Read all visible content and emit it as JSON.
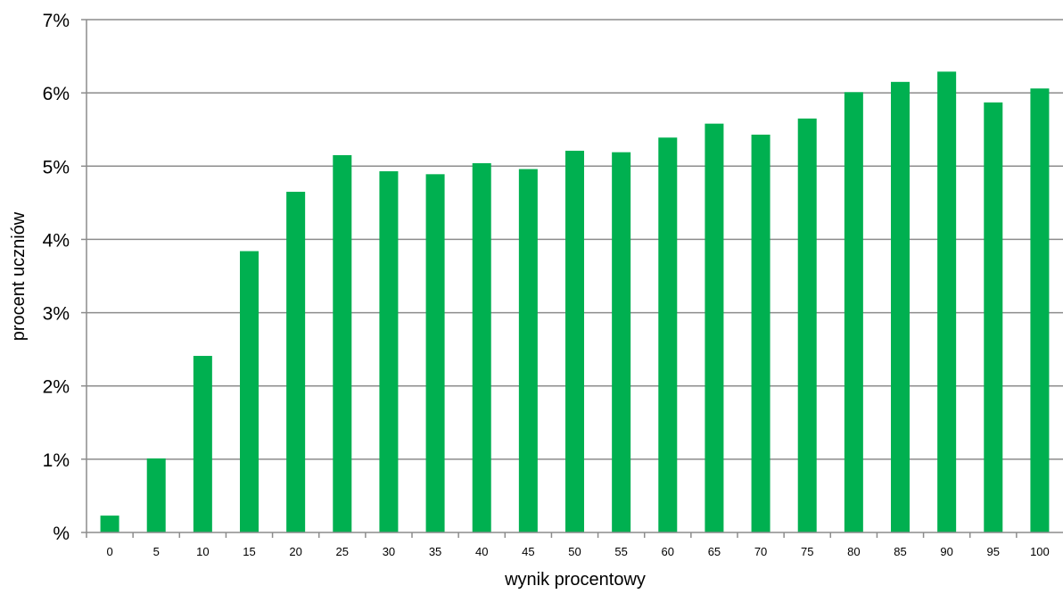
{
  "chart_data": {
    "type": "bar",
    "title": "",
    "xlabel": "wynik procentowy",
    "ylabel": "procent uczniów",
    "categories": [
      "0",
      "5",
      "10",
      "15",
      "20",
      "25",
      "30",
      "35",
      "40",
      "45",
      "50",
      "55",
      "60",
      "65",
      "70",
      "75",
      "80",
      "85",
      "90",
      "95",
      "100"
    ],
    "series": [
      {
        "values": [
          0.23,
          1.01,
          2.41,
          3.84,
          4.65,
          5.15,
          4.93,
          4.89,
          5.04,
          4.96,
          5.21,
          5.19,
          5.39,
          5.58,
          5.43,
          5.65,
          6.01,
          6.15,
          6.29,
          5.87,
          6.06
        ],
        "color": "#00b050"
      }
    ],
    "ylim": [
      0,
      7
    ],
    "y_ticks": [
      {
        "value": 0,
        "label": "%"
      },
      {
        "value": 1,
        "label": "1%"
      },
      {
        "value": 2,
        "label": "2%"
      },
      {
        "value": 3,
        "label": "3%"
      },
      {
        "value": 4,
        "label": "4%"
      },
      {
        "value": 5,
        "label": "5%"
      },
      {
        "value": 6,
        "label": "6%"
      },
      {
        "value": 7,
        "label": "7%"
      }
    ],
    "grid": true,
    "legend": "none",
    "colors": {
      "bar": "#00b050",
      "grid": "#8c8c8c",
      "text": "#000000"
    }
  }
}
